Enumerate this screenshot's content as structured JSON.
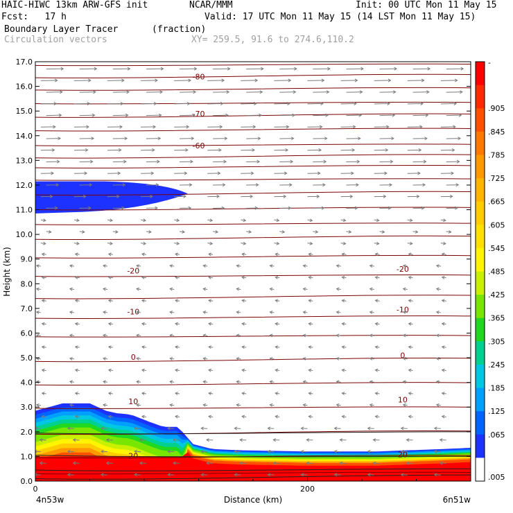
{
  "header": {
    "model": "HAIC-HIWC 13km ARW-GFS init",
    "org": "NCAR/MMM",
    "init": "Init: 00 UTC Mon 11 May 15",
    "fcst": "Fcst:   17 h",
    "valid": "Valid: 17 UTC Mon 11 May 15 (14 LST Mon 11 May 15)",
    "field1": "Boundary Layer Tracer",
    "field1_units": "(fraction)",
    "field2": "Circulation vectors",
    "xy": "XY= 259.5, 91.6 to 274.6,110.2"
  },
  "chart_data": {
    "type": "heatmap",
    "ylabel": "Height (km)",
    "xlabel": "Distance (km)",
    "xlim": [
      0,
      320
    ],
    "ylim": [
      0,
      17
    ],
    "y_ticks": [
      "0.0",
      "1.0",
      "2.0",
      "3.0",
      "4.0",
      "5.0",
      "6.0",
      "7.0",
      "8.0",
      "9.0",
      "10.0",
      "11.0",
      "12.0",
      "13.0",
      "14.0",
      "15.0",
      "16.0",
      "17.0"
    ],
    "x_ticks": [
      {
        "value": 0,
        "label": "0"
      },
      {
        "value": 200,
        "label": "200"
      }
    ],
    "left_label": "4n53w",
    "right_label": "6n51w",
    "colorbar": {
      "labels": [
        "-",
        ".905",
        ".845",
        ".785",
        ".725",
        ".665",
        ".605",
        ".545",
        ".485",
        ".425",
        ".365",
        ".305",
        ".245",
        ".185",
        ".125",
        ".065",
        ".005"
      ],
      "colors": [
        "#ff0000",
        "#ff2a00",
        "#ff5000",
        "#ff7800",
        "#ff9900",
        "#ffb400",
        "#ffcc00",
        "#ffe000",
        "#fff500",
        "#c8f000",
        "#78e600",
        "#20d820",
        "#00d090",
        "#00c8e0",
        "#00a0ff",
        "#0064ff",
        "#1e32ff",
        "#ffffff"
      ]
    },
    "temperature_contours": [
      {
        "label": "-80",
        "y": 16.3,
        "slope": 0.25
      },
      {
        "label": "-70",
        "y": 14.8,
        "slope": 0.25
      },
      {
        "label": "-60",
        "y": 13.5,
        "slope": 0.25
      },
      {
        "label": "-20",
        "y": 8.5,
        "slope": 0.12
      },
      {
        "label": "-10",
        "y": 6.85,
        "slope": 0.12
      },
      {
        "label": "0",
        "y": 5.0,
        "slope": 0.12
      },
      {
        "label": "10",
        "y": 3.2,
        "slope": 0.12
      },
      {
        "label": "20",
        "y": 1.0,
        "slope": 0.1
      }
    ],
    "bl_tracer_profile": {
      "x": [
        0,
        20,
        40,
        52,
        60,
        70,
        84,
        94,
        106,
        108,
        116,
        130,
        150,
        200,
        250,
        300,
        320
      ],
      "top": [
        2.85,
        3.15,
        3.15,
        2.85,
        2.75,
        2.7,
        2.4,
        2.2,
        2.2,
        2.0,
        1.5,
        1.3,
        1.25,
        1.2,
        1.2,
        1.3,
        1.35
      ]
    },
    "upper_tracer": {
      "x_end": 112,
      "y_top": 12.15,
      "y_bottom": 10.85
    }
  }
}
